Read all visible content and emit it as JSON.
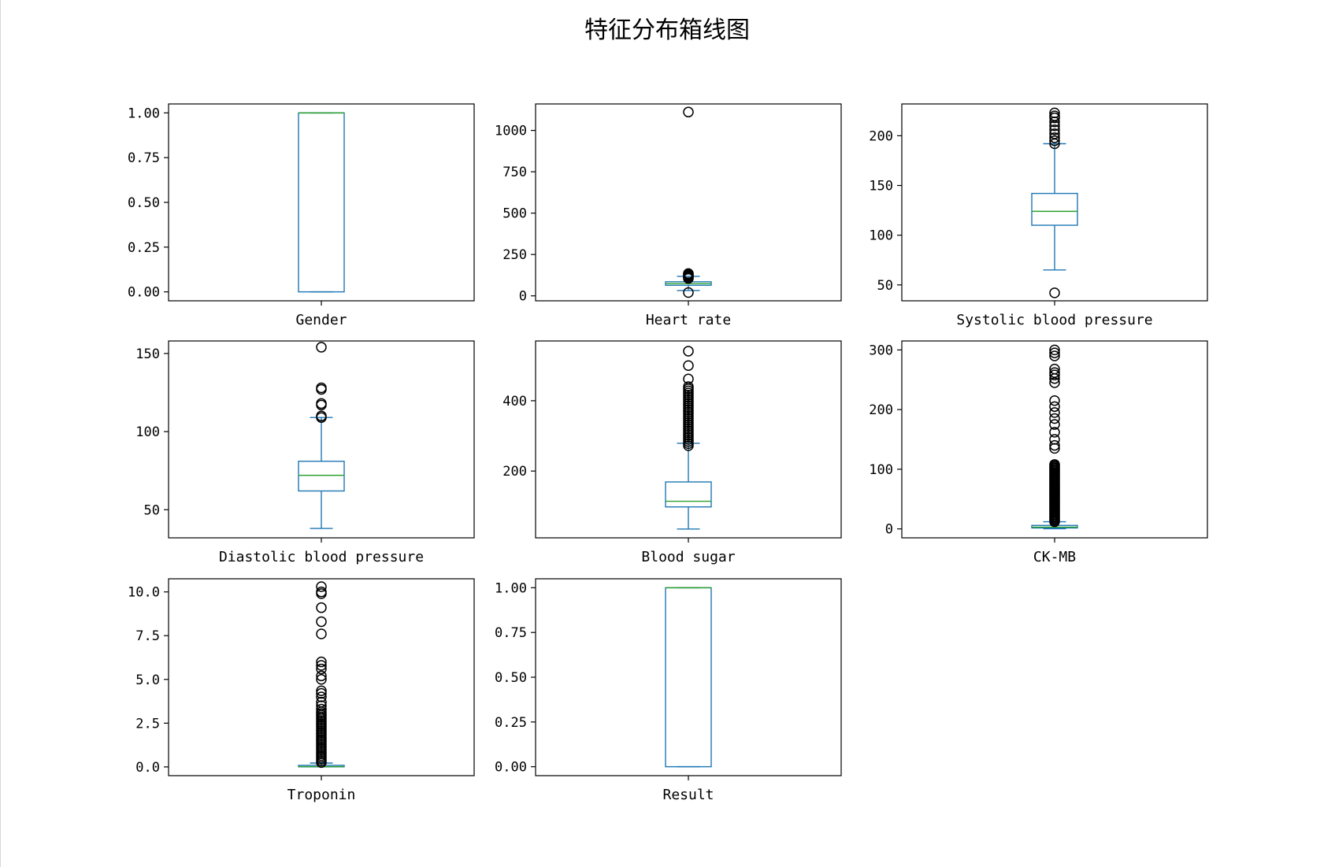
{
  "figure": {
    "title": "特征分布箱线图"
  },
  "colors": {
    "box": "#1f77b4",
    "median": "#2ca02c",
    "flier": "#000000",
    "axes": "#000000"
  },
  "chart_data": [
    {
      "type": "box",
      "xlabel": "Gender",
      "ylim": [
        -0.05,
        1.05
      ],
      "ticks": [
        0,
        0.25,
        0.5,
        0.75,
        1.0
      ],
      "tick_labels": [
        "0.00",
        "0.25",
        "0.50",
        "0.75",
        "1.00"
      ],
      "stats": {
        "whisker_low": 0,
        "q1": 0,
        "median": 1,
        "q3": 1,
        "whisker_high": 1
      },
      "fliers": []
    },
    {
      "type": "box",
      "xlabel": "Heart rate",
      "ylim": [
        -30,
        1160
      ],
      "ticks": [
        0,
        250,
        500,
        750,
        1000
      ],
      "tick_labels": [
        "0",
        "250",
        "500",
        "750",
        "1000"
      ],
      "stats": {
        "whisker_low": 32,
        "q1": 64,
        "median": 74,
        "q3": 85,
        "whisker_high": 118
      },
      "fliers": [
        20,
        105,
        112,
        116,
        122,
        128,
        132,
        135,
        1111
      ]
    },
    {
      "type": "box",
      "xlabel": "Systolic blood pressure",
      "ylim": [
        34,
        232
      ],
      "ticks": [
        50,
        100,
        150,
        200
      ],
      "tick_labels": [
        "50",
        "100",
        "150",
        "200"
      ],
      "stats": {
        "whisker_low": 65,
        "q1": 110,
        "median": 124,
        "q3": 142,
        "whisker_high": 192
      },
      "fliers": [
        42,
        192,
        195,
        198,
        202,
        206,
        210,
        214,
        218,
        220,
        223
      ]
    },
    {
      "type": "box",
      "xlabel": "Diastolic blood pressure",
      "ylim": [
        32,
        158
      ],
      "ticks": [
        50,
        100,
        150
      ],
      "tick_labels": [
        "50",
        "100",
        "150"
      ],
      "stats": {
        "whisker_low": 38,
        "q1": 62,
        "median": 72,
        "q3": 81,
        "whisker_high": 109
      },
      "fliers": [
        109,
        110,
        117,
        118,
        127,
        128,
        154
      ]
    },
    {
      "type": "box",
      "xlabel": "Blood sugar",
      "ylim": [
        10,
        570
      ],
      "ticks": [
        200,
        400
      ],
      "tick_labels": [
        "200",
        "400"
      ],
      "stats": {
        "whisker_low": 35,
        "q1": 98,
        "median": 114,
        "q3": 169,
        "whisker_high": 279
      },
      "fliers": [
        272,
        278,
        284,
        290,
        296,
        302,
        308,
        314,
        320,
        326,
        332,
        338,
        344,
        350,
        356,
        362,
        368,
        374,
        380,
        386,
        392,
        398,
        404,
        410,
        416,
        422,
        428,
        434,
        440,
        462,
        500,
        541
      ]
    },
    {
      "type": "box",
      "xlabel": "CK-MB",
      "ylim": [
        -15,
        315
      ],
      "ticks": [
        0,
        100,
        200,
        300
      ],
      "tick_labels": [
        "0",
        "100",
        "200",
        "300"
      ],
      "stats": {
        "whisker_low": 0.3,
        "q1": 1.6,
        "median": 2.9,
        "q3": 5.8,
        "whisker_high": 12
      },
      "fliers": [
        12,
        14,
        16,
        18,
        20,
        22,
        24,
        26,
        28,
        30,
        32,
        34,
        36,
        38,
        40,
        42,
        44,
        46,
        48,
        50,
        52,
        54,
        56,
        58,
        60,
        62,
        64,
        66,
        68,
        70,
        72,
        74,
        76,
        78,
        80,
        82,
        84,
        86,
        88,
        90,
        92,
        94,
        96,
        98,
        100,
        102,
        104,
        106,
        108,
        135,
        140,
        150,
        162,
        175,
        185,
        195,
        205,
        215,
        245,
        252,
        258,
        262,
        268,
        290,
        295,
        300
      ]
    },
    {
      "type": "box",
      "xlabel": "Troponin",
      "ylim": [
        -0.5,
        10.75
      ],
      "ticks": [
        0,
        2.5,
        5.0,
        7.5,
        10.0
      ],
      "tick_labels": [
        "0.0",
        "2.5",
        "5.0",
        "7.5",
        "10.0"
      ],
      "stats": {
        "whisker_low": 0.002,
        "q1": 0.006,
        "median": 0.014,
        "q3": 0.09,
        "whisker_high": 0.22
      },
      "fliers": [
        0.25,
        0.35,
        0.45,
        0.55,
        0.65,
        0.75,
        0.85,
        0.95,
        1.05,
        1.15,
        1.25,
        1.35,
        1.45,
        1.55,
        1.65,
        1.75,
        1.85,
        1.95,
        2.05,
        2.15,
        2.25,
        2.35,
        2.45,
        2.55,
        2.65,
        2.75,
        2.85,
        2.95,
        3.05,
        3.15,
        3.3,
        3.5,
        3.7,
        4.0,
        4.2,
        4.35,
        5.0,
        5.2,
        5.6,
        5.8,
        6.0,
        7.6,
        8.3,
        9.1,
        9.9,
        10.0,
        10.3
      ]
    },
    {
      "type": "box",
      "xlabel": "Result",
      "ylim": [
        -0.05,
        1.05
      ],
      "ticks": [
        0,
        0.25,
        0.5,
        0.75,
        1.0
      ],
      "tick_labels": [
        "0.00",
        "0.25",
        "0.50",
        "0.75",
        "1.00"
      ],
      "stats": {
        "whisker_low": 0,
        "q1": 0,
        "median": 1,
        "q3": 1,
        "whisker_high": 1
      },
      "fliers": []
    }
  ]
}
